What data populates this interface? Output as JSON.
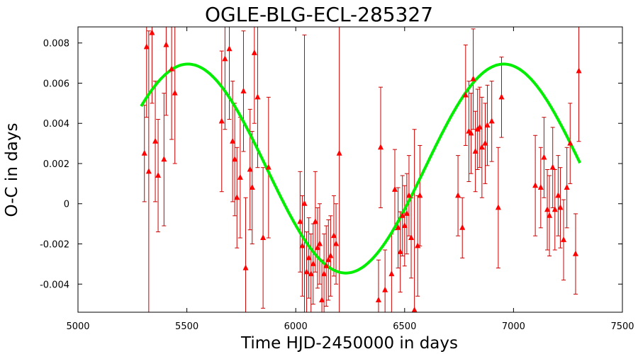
{
  "chart_data": {
    "type": "scatter",
    "title": "OGLE-BLG-ECL-285327",
    "xlabel": "Time HJD-2450000 in days",
    "ylabel": "O-C in days",
    "xlim": [
      5000,
      7500
    ],
    "ylim": [
      -0.0054,
      0.0088
    ],
    "xticks": [
      5000,
      5500,
      6000,
      6500,
      7000,
      7500
    ],
    "yticks": [
      -0.004,
      -0.002,
      0,
      0.002,
      0.004,
      0.006,
      0.008
    ],
    "ytick_labels": [
      "-0.004",
      "-0.002",
      "0",
      "0.002",
      "0.004",
      "0.006",
      "0.008"
    ],
    "grid": false,
    "colors": {
      "points": "#ff0000",
      "errorbars": "#cc0000",
      "fit": "#00ee00"
    },
    "series": [
      {
        "marker": "triangle",
        "points": [
          {
            "x": 5305,
            "y": 0.0025,
            "err": 0.0024
          },
          {
            "x": 5315,
            "y": 0.0078,
            "err": 0.0035
          },
          {
            "x": 5325,
            "y": 0.0016,
            "err": 0.007
          },
          {
            "x": 5340,
            "y": 0.0085,
            "err": 0.0035
          },
          {
            "x": 5355,
            "y": 0.0031,
            "err": 0.003
          },
          {
            "x": 5368,
            "y": 0.0014,
            "err": 0.0028
          },
          {
            "x": 5395,
            "y": 0.0022,
            "err": 0.0033
          },
          {
            "x": 5405,
            "y": 0.0079,
            "err": 0.0035
          },
          {
            "x": 5430,
            "y": 0.0067,
            "err": 0.0035
          },
          {
            "x": 5445,
            "y": 0.0055,
            "err": 0.0035
          },
          {
            "x": 5660,
            "y": 0.0041,
            "err": 0.0035
          },
          {
            "x": 5675,
            "y": 0.0072,
            "err": 0.0035
          },
          {
            "x": 5695,
            "y": 0.0077,
            "err": 0.0035
          },
          {
            "x": 5710,
            "y": 0.0031,
            "err": 0.003
          },
          {
            "x": 5720,
            "y": 0.0022,
            "err": 0.0028
          },
          {
            "x": 5730,
            "y": 0.0003,
            "err": 0.0025
          },
          {
            "x": 5745,
            "y": 0.0013,
            "err": 0.003
          },
          {
            "x": 5760,
            "y": 0.0056,
            "err": 0.003
          },
          {
            "x": 5770,
            "y": -0.0032,
            "err": 0.0035
          },
          {
            "x": 5790,
            "y": 0.0017,
            "err": 0.003
          },
          {
            "x": 5800,
            "y": 0.0008,
            "err": 0.0028
          },
          {
            "x": 5810,
            "y": 0.0075,
            "err": 0.0035
          },
          {
            "x": 5825,
            "y": 0.0053,
            "err": 0.0035
          },
          {
            "x": 5850,
            "y": -0.0017,
            "err": 0.0035
          },
          {
            "x": 5875,
            "y": 0.0018,
            "err": 0.0035
          },
          {
            "x": 6020,
            "y": -0.0009,
            "err": 0.0025
          },
          {
            "x": 6030,
            "y": -0.0021,
            "err": 0.0025
          },
          {
            "x": 6040,
            "y": 0.0,
            "err": 0.0084
          },
          {
            "x": 6050,
            "y": -0.0034,
            "err": 0.002
          },
          {
            "x": 6060,
            "y": -0.0027,
            "err": 0.002
          },
          {
            "x": 6070,
            "y": -0.0035,
            "err": 0.002
          },
          {
            "x": 6080,
            "y": -0.003,
            "err": 0.002
          },
          {
            "x": 6090,
            "y": -0.0009,
            "err": 0.0025
          },
          {
            "x": 6100,
            "y": -0.0022,
            "err": 0.002
          },
          {
            "x": 6110,
            "y": -0.002,
            "err": 0.002
          },
          {
            "x": 6120,
            "y": -0.0048,
            "err": 0.002
          },
          {
            "x": 6130,
            "y": -0.0035,
            "err": 0.002
          },
          {
            "x": 6140,
            "y": -0.0031,
            "err": 0.002
          },
          {
            "x": 6150,
            "y": -0.0028,
            "err": 0.002
          },
          {
            "x": 6160,
            "y": -0.0026,
            "err": 0.002
          },
          {
            "x": 6175,
            "y": -0.0016,
            "err": 0.002
          },
          {
            "x": 6185,
            "y": -0.002,
            "err": 0.002
          },
          {
            "x": 6200,
            "y": 0.0025,
            "err": 0.008
          },
          {
            "x": 6380,
            "y": -0.0048,
            "err": 0.002
          },
          {
            "x": 6390,
            "y": 0.0028,
            "err": 0.003
          },
          {
            "x": 6410,
            "y": -0.0043,
            "err": 0.002
          },
          {
            "x": 6440,
            "y": -0.0035,
            "err": 0.002
          },
          {
            "x": 6455,
            "y": 0.0007,
            "err": 0.002
          },
          {
            "x": 6470,
            "y": -0.0012,
            "err": 0.002
          },
          {
            "x": 6480,
            "y": -0.0024,
            "err": 0.002
          },
          {
            "x": 6490,
            "y": -0.0006,
            "err": 0.002
          },
          {
            "x": 6500,
            "y": -0.0011,
            "err": 0.002
          },
          {
            "x": 6510,
            "y": -0.0005,
            "err": 0.002
          },
          {
            "x": 6520,
            "y": 0.0004,
            "err": 0.002
          },
          {
            "x": 6530,
            "y": -0.0017,
            "err": 0.002
          },
          {
            "x": 6545,
            "y": -0.0053,
            "err": 0.009
          },
          {
            "x": 6560,
            "y": -0.0021,
            "err": 0.0025
          },
          {
            "x": 6570,
            "y": 0.0004,
            "err": 0.0025
          },
          {
            "x": 6745,
            "y": 0.0004,
            "err": 0.002
          },
          {
            "x": 6765,
            "y": -0.0012,
            "err": 0.0015
          },
          {
            "x": 6780,
            "y": 0.0054,
            "err": 0.0025
          },
          {
            "x": 6795,
            "y": 0.0036,
            "err": 0.0025
          },
          {
            "x": 6805,
            "y": 0.0035,
            "err": 0.002
          },
          {
            "x": 6815,
            "y": 0.0062,
            "err": 0.0025
          },
          {
            "x": 6825,
            "y": 0.0026,
            "err": 0.002
          },
          {
            "x": 6835,
            "y": 0.0037,
            "err": 0.002
          },
          {
            "x": 6845,
            "y": 0.0038,
            "err": 0.002
          },
          {
            "x": 6855,
            "y": 0.0028,
            "err": 0.0025
          },
          {
            "x": 6870,
            "y": 0.003,
            "err": 0.002
          },
          {
            "x": 6880,
            "y": 0.0039,
            "err": 0.002
          },
          {
            "x": 6900,
            "y": 0.0041,
            "err": 0.002
          },
          {
            "x": 6930,
            "y": -0.0002,
            "err": 0.003
          },
          {
            "x": 6945,
            "y": 0.0053,
            "err": 0.002
          },
          {
            "x": 7100,
            "y": 0.0009,
            "err": 0.0025
          },
          {
            "x": 7125,
            "y": 0.0008,
            "err": 0.002
          },
          {
            "x": 7140,
            "y": 0.0023,
            "err": 0.002
          },
          {
            "x": 7155,
            "y": -0.0003,
            "err": 0.002
          },
          {
            "x": 7165,
            "y": -0.0006,
            "err": 0.002
          },
          {
            "x": 7180,
            "y": 0.0018,
            "err": 0.002
          },
          {
            "x": 7190,
            "y": -0.0003,
            "err": 0.002
          },
          {
            "x": 7205,
            "y": 0.0004,
            "err": 0.002
          },
          {
            "x": 7215,
            "y": -0.0002,
            "err": 0.002
          },
          {
            "x": 7230,
            "y": -0.0018,
            "err": 0.002
          },
          {
            "x": 7245,
            "y": 0.0008,
            "err": 0.002
          },
          {
            "x": 7260,
            "y": 0.003,
            "err": 0.002
          },
          {
            "x": 7285,
            "y": -0.0025,
            "err": 0.002
          },
          {
            "x": 7300,
            "y": 0.0066,
            "err": 0.0035
          }
        ]
      }
    ],
    "fit": {
      "type": "sinusoid",
      "offset": 0.00175,
      "amplitude": 0.0052,
      "period": 1450,
      "peak_x": 5505,
      "x_range": [
        5290,
        7305
      ]
    }
  }
}
